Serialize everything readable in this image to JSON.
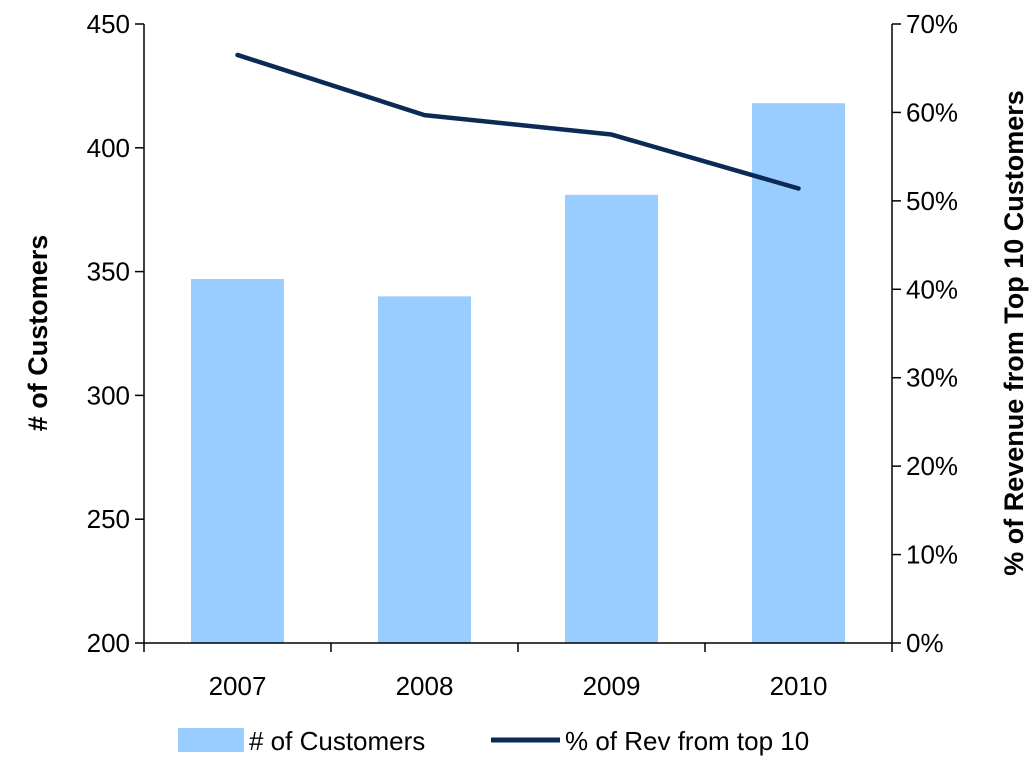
{
  "chart_data": {
    "type": "bar",
    "categories": [
      "2007",
      "2008",
      "2009",
      "2010"
    ],
    "series": [
      {
        "name": "# of Customers",
        "type": "bar",
        "axis": "left",
        "values": [
          347,
          340,
          381,
          418
        ],
        "color": "#99CCFF"
      },
      {
        "name": "% of Rev from top 10",
        "type": "line",
        "axis": "right",
        "values": [
          0.665,
          0.597,
          0.575,
          0.514
        ],
        "color": "#0B2A55"
      }
    ],
    "y_left": {
      "label": "# of Customers",
      "ylim": [
        200,
        450
      ],
      "ticks": [
        "200",
        "250",
        "300",
        "350",
        "400",
        "450"
      ],
      "tick_values": [
        200,
        250,
        300,
        350,
        400,
        450
      ]
    },
    "y_right": {
      "label": "% of Revenue from Top 10 Customers",
      "ylim": [
        0,
        0.7
      ],
      "ticks": [
        "0%",
        "10%",
        "20%",
        "30%",
        "40%",
        "50%",
        "60%",
        "70%"
      ],
      "tick_values": [
        0,
        0.1,
        0.2,
        0.3,
        0.4,
        0.5,
        0.6,
        0.7
      ]
    },
    "grid": false,
    "legend": "bottom"
  }
}
